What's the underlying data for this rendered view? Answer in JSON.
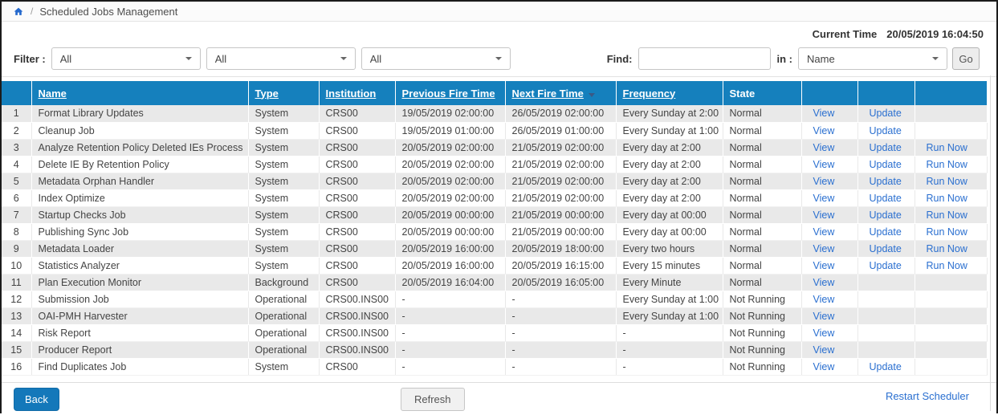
{
  "breadcrumb": {
    "separator": "/",
    "title": "Scheduled Jobs Management"
  },
  "current_time": {
    "label": "Current Time",
    "value": "20/05/2019 16:04:50"
  },
  "filter_bar": {
    "filter_label": "Filter :",
    "dropdowns": [
      {
        "value": "All"
      },
      {
        "value": "All"
      },
      {
        "value": "All"
      }
    ],
    "find_label": "Find:",
    "find_value": "",
    "in_label": "in :",
    "in_dropdown_value": "Name",
    "go_button": "Go"
  },
  "table": {
    "sorted_column": "next",
    "sort_direction": "desc",
    "columns": [
      {
        "key": "num",
        "label": "",
        "underlined": false
      },
      {
        "key": "name",
        "label": "Name",
        "underlined": true
      },
      {
        "key": "type",
        "label": "Type",
        "underlined": true
      },
      {
        "key": "institution",
        "label": "Institution",
        "underlined": true
      },
      {
        "key": "previous",
        "label": "Previous Fire Time",
        "underlined": true
      },
      {
        "key": "next",
        "label": "Next Fire Time",
        "underlined": true,
        "sorted": "desc"
      },
      {
        "key": "frequency",
        "label": "Frequency",
        "underlined": true
      },
      {
        "key": "state",
        "label": "State",
        "underlined": false
      },
      {
        "key": "view",
        "label": "",
        "link": true
      },
      {
        "key": "update",
        "label": "",
        "link": true
      },
      {
        "key": "run_now",
        "label": "",
        "link": true
      }
    ],
    "rows": [
      {
        "num": "1",
        "name": "Format Library Updates",
        "type": "System",
        "institution": "CRS00",
        "previous": "19/05/2019 02:00:00",
        "next": "26/05/2019 02:00:00",
        "frequency": "Every Sunday at 2:00",
        "state": "Normal",
        "view": "View",
        "update": "Update",
        "run_now": ""
      },
      {
        "num": "2",
        "name": "Cleanup Job",
        "type": "System",
        "institution": "CRS00",
        "previous": "19/05/2019 01:00:00",
        "next": "26/05/2019 01:00:00",
        "frequency": "Every Sunday at 1:00",
        "state": "Normal",
        "view": "View",
        "update": "Update",
        "run_now": ""
      },
      {
        "num": "3",
        "name": "Analyze Retention Policy Deleted IEs Process",
        "type": "System",
        "institution": "CRS00",
        "previous": "20/05/2019 02:00:00",
        "next": "21/05/2019 02:00:00",
        "frequency": "Every day at 2:00",
        "state": "Normal",
        "view": "View",
        "update": "Update",
        "run_now": "Run Now"
      },
      {
        "num": "4",
        "name": "Delete IE By Retention Policy",
        "type": "System",
        "institution": "CRS00",
        "previous": "20/05/2019 02:00:00",
        "next": "21/05/2019 02:00:00",
        "frequency": "Every day at 2:00",
        "state": "Normal",
        "view": "View",
        "update": "Update",
        "run_now": "Run Now"
      },
      {
        "num": "5",
        "name": "Metadata Orphan Handler",
        "type": "System",
        "institution": "CRS00",
        "previous": "20/05/2019 02:00:00",
        "next": "21/05/2019 02:00:00",
        "frequency": "Every day at 2:00",
        "state": "Normal",
        "view": "View",
        "update": "Update",
        "run_now": "Run Now"
      },
      {
        "num": "6",
        "name": "Index Optimize",
        "type": "System",
        "institution": "CRS00",
        "previous": "20/05/2019 02:00:00",
        "next": "21/05/2019 02:00:00",
        "frequency": "Every day at 2:00",
        "state": "Normal",
        "view": "View",
        "update": "Update",
        "run_now": "Run Now"
      },
      {
        "num": "7",
        "name": "Startup Checks Job",
        "type": "System",
        "institution": "CRS00",
        "previous": "20/05/2019 00:00:00",
        "next": "21/05/2019 00:00:00",
        "frequency": "Every day at 00:00",
        "state": "Normal",
        "view": "View",
        "update": "Update",
        "run_now": "Run Now"
      },
      {
        "num": "8",
        "name": "Publishing Sync Job",
        "type": "System",
        "institution": "CRS00",
        "previous": "20/05/2019 00:00:00",
        "next": "21/05/2019 00:00:00",
        "frequency": "Every day at 00:00",
        "state": "Normal",
        "view": "View",
        "update": "Update",
        "run_now": "Run Now"
      },
      {
        "num": "9",
        "name": "Metadata Loader",
        "type": "System",
        "institution": "CRS00",
        "previous": "20/05/2019 16:00:00",
        "next": "20/05/2019 18:00:00",
        "frequency": "Every two hours",
        "state": "Normal",
        "view": "View",
        "update": "Update",
        "run_now": "Run Now"
      },
      {
        "num": "10",
        "name": "Statistics Analyzer",
        "type": "System",
        "institution": "CRS00",
        "previous": "20/05/2019 16:00:00",
        "next": "20/05/2019 16:15:00",
        "frequency": "Every 15 minutes",
        "state": "Normal",
        "view": "View",
        "update": "Update",
        "run_now": "Run Now"
      },
      {
        "num": "11",
        "name": "Plan Execution Monitor",
        "type": "Background",
        "institution": "CRS00",
        "previous": "20/05/2019 16:04:00",
        "next": "20/05/2019 16:05:00",
        "frequency": "Every Minute",
        "state": "Normal",
        "view": "View",
        "update": "",
        "run_now": ""
      },
      {
        "num": "12",
        "name": "Submission Job",
        "type": "Operational",
        "institution": "CRS00.INS00",
        "previous": "-",
        "next": "-",
        "frequency": "Every Sunday at 1:00",
        "state": "Not Running",
        "view": "View",
        "update": "",
        "run_now": ""
      },
      {
        "num": "13",
        "name": "OAI-PMH Harvester",
        "type": "Operational",
        "institution": "CRS00.INS00",
        "previous": "-",
        "next": "-",
        "frequency": "Every Sunday at 1:00",
        "state": "Not Running",
        "view": "View",
        "update": "",
        "run_now": ""
      },
      {
        "num": "14",
        "name": "Risk Report",
        "type": "Operational",
        "institution": "CRS00.INS00",
        "previous": "-",
        "next": "-",
        "frequency": "-",
        "state": "Not Running",
        "view": "View",
        "update": "",
        "run_now": ""
      },
      {
        "num": "15",
        "name": "Producer Report",
        "type": "Operational",
        "institution": "CRS00.INS00",
        "previous": "-",
        "next": "-",
        "frequency": "-",
        "state": "Not Running",
        "view": "View",
        "update": "",
        "run_now": ""
      },
      {
        "num": "16",
        "name": "Find Duplicates Job",
        "type": "System",
        "institution": "CRS00",
        "previous": "-",
        "next": "-",
        "frequency": "-",
        "state": "Not Running",
        "view": "View",
        "update": "Update",
        "run_now": ""
      }
    ]
  },
  "footer": {
    "back_button": "Back",
    "refresh_button": "Refresh",
    "restart_link": "Restart Scheduler"
  },
  "colors": {
    "header_blue": "#1580bd",
    "link_blue": "#2a6fd0",
    "row_alt_gray": "#e9e9e9",
    "back_button_blue": "#1478ba",
    "home_icon_blue": "#2569cd"
  }
}
